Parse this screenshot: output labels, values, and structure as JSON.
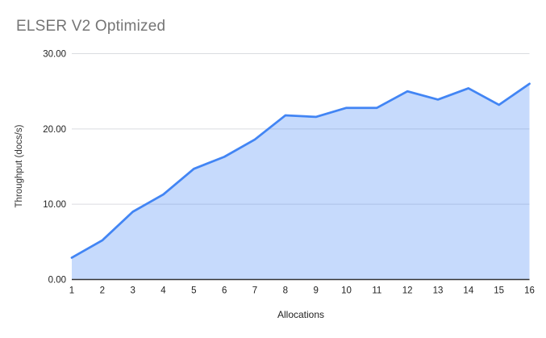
{
  "chart_data": {
    "type": "area",
    "title": "ELSER V2 Optimized",
    "xlabel": "Allocations",
    "ylabel": "Throughput (docs/s)",
    "x": [
      1,
      2,
      3,
      4,
      5,
      6,
      7,
      8,
      9,
      10,
      11,
      12,
      13,
      14,
      15,
      16
    ],
    "values": [
      2.9,
      5.2,
      9.0,
      11.3,
      14.7,
      16.3,
      18.6,
      21.8,
      21.6,
      22.8,
      22.8,
      25.0,
      23.9,
      25.4,
      23.2,
      26.0
    ],
    "series_name": "Throughput (docs/s)",
    "ylim": [
      0,
      30
    ],
    "yticks": [
      "0.00",
      "10.00",
      "20.00",
      "30.00"
    ],
    "xticks": [
      "1",
      "2",
      "3",
      "4",
      "5",
      "6",
      "7",
      "8",
      "9",
      "10",
      "11",
      "12",
      "13",
      "14",
      "15",
      "16"
    ],
    "grid": "horizontal-only",
    "legend_position": "none",
    "colors": {
      "line": "#4285f4",
      "fill": "rgba(66,133,244,0.30)",
      "gridline": "#dadce0",
      "axis_line": "#333333",
      "title_text": "#757575",
      "tick_text": "#222222",
      "axis_title_text": "#333333",
      "background": "#ffffff"
    }
  }
}
